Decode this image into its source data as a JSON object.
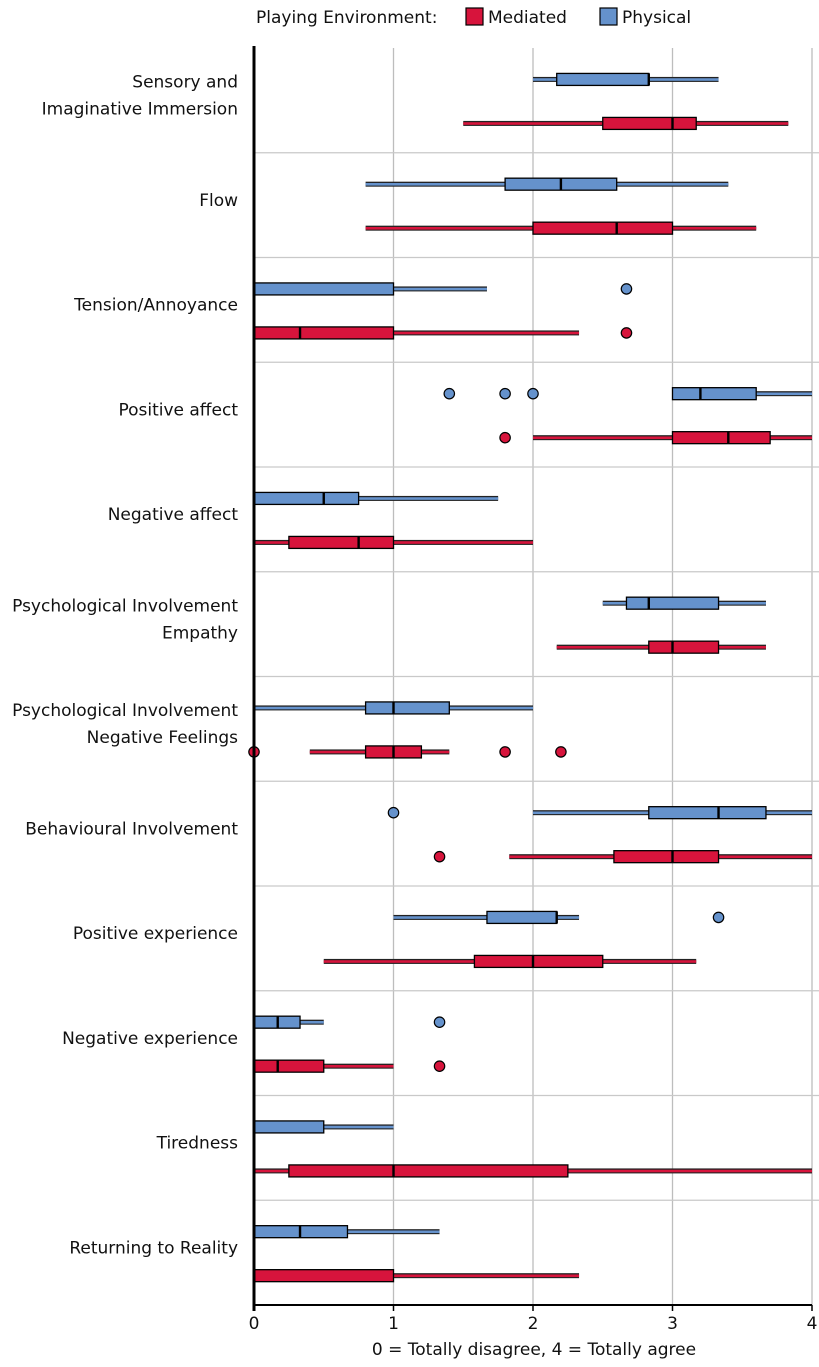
{
  "chart_data": {
    "type": "boxplot",
    "orientation": "horizontal",
    "legend": {
      "title": "Playing Environment:",
      "placement": "top",
      "entries": [
        {
          "name": "Mediated",
          "color": "#d7143c"
        },
        {
          "name": "Physical",
          "color": "#6592cc"
        }
      ]
    },
    "xlabel": "0 = Totally disagree, 4 = Totally agree",
    "xlim": [
      0,
      4
    ],
    "xticks": [
      "0",
      "1",
      "2",
      "3",
      "4"
    ],
    "grid": true,
    "categories": [
      {
        "label_lines": [
          "Sensory and",
          "Imaginative Immersion"
        ],
        "physical": {
          "whisker_low": 2.0,
          "q1": 2.17,
          "median": 2.83,
          "q3": 2.83,
          "whisker_high": 3.33,
          "outliers": []
        },
        "mediated": {
          "whisker_low": 1.5,
          "q1": 2.5,
          "median": 3.0,
          "q3": 3.17,
          "whisker_high": 3.83,
          "outliers": []
        }
      },
      {
        "label_lines": [
          "Flow"
        ],
        "physical": {
          "whisker_low": 0.8,
          "q1": 1.8,
          "median": 2.2,
          "q3": 2.6,
          "whisker_high": 3.4,
          "outliers": []
        },
        "mediated": {
          "whisker_low": 0.8,
          "q1": 2.0,
          "median": 2.6,
          "q3": 3.0,
          "whisker_high": 3.6,
          "outliers": []
        }
      },
      {
        "label_lines": [
          "Tension/Annoyance"
        ],
        "physical": {
          "whisker_low": 0.0,
          "q1": 0.0,
          "median": 0.0,
          "q3": 1.0,
          "whisker_high": 1.67,
          "outliers": [
            2.67
          ]
        },
        "mediated": {
          "whisker_low": 0.0,
          "q1": 0.0,
          "median": 0.33,
          "q3": 1.0,
          "whisker_high": 2.33,
          "outliers": [
            2.67
          ]
        }
      },
      {
        "label_lines": [
          "Positive affect"
        ],
        "physical": {
          "whisker_low": 3.0,
          "q1": 3.0,
          "median": 3.2,
          "q3": 3.6,
          "whisker_high": 4.0,
          "outliers": [
            1.4,
            1.8,
            2.0
          ]
        },
        "mediated": {
          "whisker_low": 2.0,
          "q1": 3.0,
          "median": 3.4,
          "q3": 3.7,
          "whisker_high": 4.0,
          "outliers": [
            1.8
          ]
        }
      },
      {
        "label_lines": [
          "Negative affect"
        ],
        "physical": {
          "whisker_low": 0.0,
          "q1": 0.0,
          "median": 0.5,
          "q3": 0.75,
          "whisker_high": 1.75,
          "outliers": []
        },
        "mediated": {
          "whisker_low": 0.0,
          "q1": 0.25,
          "median": 0.75,
          "q3": 1.0,
          "whisker_high": 2.0,
          "outliers": []
        }
      },
      {
        "label_lines": [
          "Psychological Involvement",
          "Empathy"
        ],
        "physical": {
          "whisker_low": 2.5,
          "q1": 2.67,
          "median": 2.83,
          "q3": 3.33,
          "whisker_high": 3.67,
          "outliers": []
        },
        "mediated": {
          "whisker_low": 2.17,
          "q1": 2.83,
          "median": 3.0,
          "q3": 3.33,
          "whisker_high": 3.67,
          "outliers": []
        }
      },
      {
        "label_lines": [
          "Psychological Involvement",
          "Negative Feelings"
        ],
        "physical": {
          "whisker_low": 0.0,
          "q1": 0.8,
          "median": 1.0,
          "q3": 1.4,
          "whisker_high": 2.0,
          "outliers": []
        },
        "mediated": {
          "whisker_low": 0.4,
          "q1": 0.8,
          "median": 1.0,
          "q3": 1.2,
          "whisker_high": 1.4,
          "outliers": [
            0.0,
            1.8,
            2.2
          ]
        }
      },
      {
        "label_lines": [
          "Behavioural Involvement"
        ],
        "physical": {
          "whisker_low": 2.0,
          "q1": 2.83,
          "median": 3.33,
          "q3": 3.67,
          "whisker_high": 4.0,
          "outliers": [
            1.0
          ]
        },
        "mediated": {
          "whisker_low": 1.83,
          "q1": 2.58,
          "median": 3.0,
          "q3": 3.33,
          "whisker_high": 4.0,
          "outliers": [
            1.33
          ]
        }
      },
      {
        "label_lines": [
          "Positive experience"
        ],
        "physical": {
          "whisker_low": 1.0,
          "q1": 1.67,
          "median": 2.17,
          "q3": 2.17,
          "whisker_high": 2.33,
          "outliers": [
            3.33
          ]
        },
        "mediated": {
          "whisker_low": 0.5,
          "q1": 1.58,
          "median": 2.0,
          "q3": 2.5,
          "whisker_high": 3.17,
          "outliers": []
        }
      },
      {
        "label_lines": [
          "Negative experience"
        ],
        "physical": {
          "whisker_low": 0.0,
          "q1": 0.0,
          "median": 0.17,
          "q3": 0.33,
          "whisker_high": 0.5,
          "outliers": [
            1.33
          ]
        },
        "mediated": {
          "whisker_low": 0.0,
          "q1": 0.0,
          "median": 0.17,
          "q3": 0.5,
          "whisker_high": 1.0,
          "outliers": [
            1.33
          ]
        }
      },
      {
        "label_lines": [
          "Tiredness"
        ],
        "physical": {
          "whisker_low": 0.0,
          "q1": 0.0,
          "median": 0.0,
          "q3": 0.5,
          "whisker_high": 1.0,
          "outliers": []
        },
        "mediated": {
          "whisker_low": 0.0,
          "q1": 0.25,
          "median": 1.0,
          "q3": 2.25,
          "whisker_high": 4.0,
          "outliers": []
        }
      },
      {
        "label_lines": [
          "Returning to Reality"
        ],
        "physical": {
          "whisker_low": 0.0,
          "q1": 0.0,
          "median": 0.33,
          "q3": 0.67,
          "whisker_high": 1.33,
          "outliers": []
        },
        "mediated": {
          "whisker_low": 0.0,
          "q1": 0.0,
          "median": 0.0,
          "q3": 1.0,
          "whisker_high": 2.33,
          "outliers": []
        }
      }
    ]
  }
}
